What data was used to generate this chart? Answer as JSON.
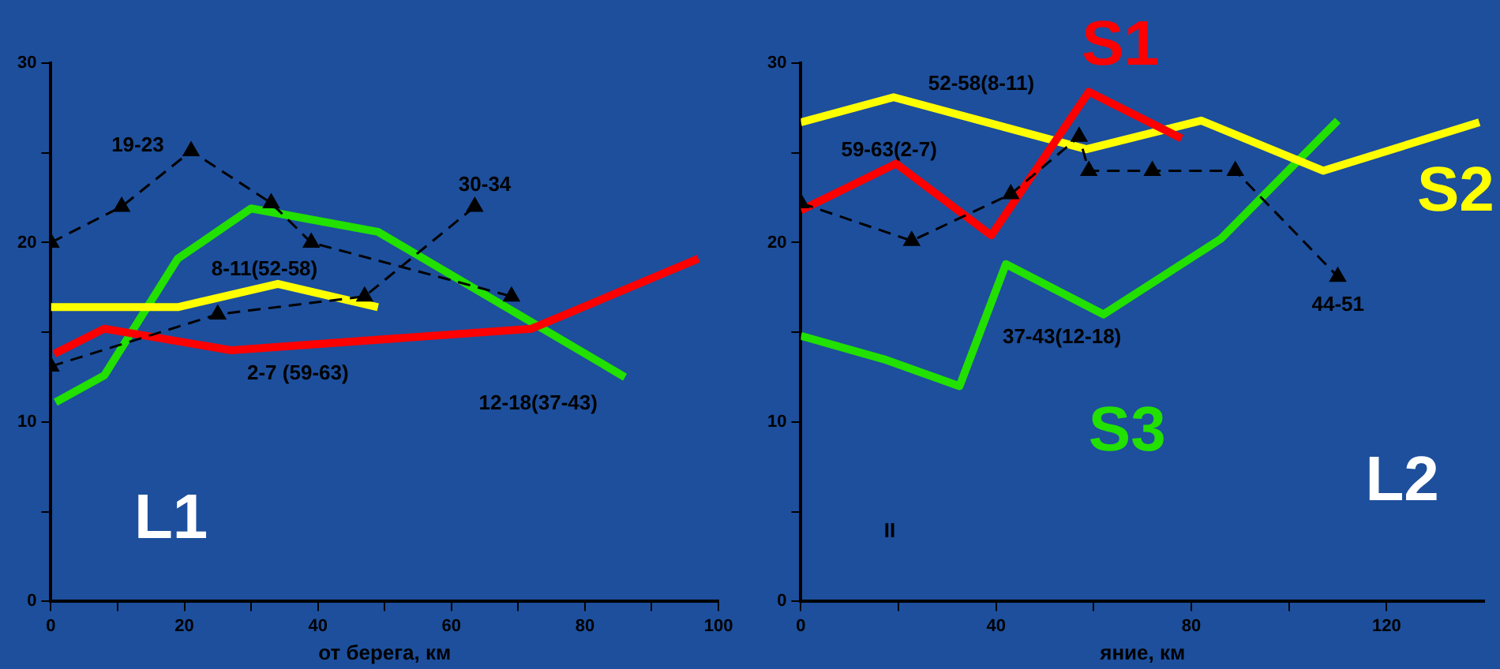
{
  "chart_data": [
    {
      "type": "line",
      "title": "L1",
      "xlabel": "от берега, км",
      "xlim": [
        0,
        100
      ],
      "ylim": [
        0,
        30
      ],
      "xticks": [
        0,
        {
          "value": 10,
          "label": null
        },
        20,
        {
          "value": 30,
          "label": null
        },
        40,
        {
          "value": 50,
          "label": null
        },
        60,
        {
          "value": 70,
          "label": null
        },
        80,
        {
          "value": 90,
          "label": null
        },
        100
      ],
      "yticks": [
        0,
        {
          "value": 5,
          "label": null
        },
        10,
        {
          "value": 15,
          "label": null
        },
        20,
        {
          "value": 25,
          "label": null
        },
        30
      ],
      "grid": false,
      "legend": false,
      "series": [
        {
          "color": "#000000",
          "marker": "triangle",
          "line_style": "dashed",
          "x": [
            0,
            10.6,
            21,
            33,
            39,
            69
          ],
          "values": [
            20,
            22,
            25.1,
            22.2,
            20,
            17
          ]
        },
        {
          "color": "#000000",
          "marker": "triangle",
          "line_style": "dashed",
          "x": [
            0,
            25,
            47,
            63.5
          ],
          "values": [
            13.1,
            16,
            17,
            22
          ]
        },
        {
          "color": "#ff0000",
          "marker": "none",
          "line_style": "solid",
          "x": [
            0.5,
            8,
            27,
            72,
            97
          ],
          "values": [
            13.8,
            15.2,
            14,
            15.2,
            19.1
          ]
        },
        {
          "color": "#ffff00",
          "marker": "none",
          "line_style": "solid",
          "x": [
            0,
            19,
            34,
            49
          ],
          "values": [
            16.4,
            16.4,
            17.7,
            16.4
          ]
        },
        {
          "color": "#22e000",
          "marker": "none",
          "line_style": "solid",
          "x": [
            0.7,
            8,
            19,
            30,
            49,
            86
          ],
          "values": [
            11.1,
            12.6,
            19.1,
            21.9,
            20.6,
            12.5
          ]
        }
      ],
      "annotations": [
        "19-23",
        "30-34",
        "8-11(52-58)",
        "2-7 (59-63)",
        "12-18(37-43)"
      ]
    },
    {
      "type": "line",
      "title": "L2",
      "xlabel": "яние, км",
      "xlim": [
        0,
        140
      ],
      "ylim": [
        0,
        30
      ],
      "xticks": [
        0,
        {
          "value": 20,
          "label": null
        },
        40,
        {
          "value": 60,
          "label": null
        },
        80,
        {
          "value": 100,
          "label": null
        },
        120
      ],
      "yticks": [
        0,
        {
          "value": 5,
          "label": null
        },
        10,
        {
          "value": 15,
          "label": null
        },
        20,
        {
          "value": 25,
          "label": null
        },
        30
      ],
      "grid": false,
      "legend": false,
      "series": [
        {
          "color": "#000000",
          "marker": "triangle",
          "line_style": "dashed",
          "x": [
            0,
            22.7,
            43,
            57,
            59,
            72,
            89,
            110
          ],
          "values": [
            22.2,
            20.1,
            22.7,
            25.9,
            24,
            24,
            24,
            18.1
          ]
        },
        {
          "name": "S1",
          "color": "#ff0000",
          "marker": "none",
          "line_style": "solid",
          "x": [
            0,
            19.5,
            39,
            59,
            78
          ],
          "values": [
            21.8,
            24.4,
            20.4,
            28.4,
            25.8
          ]
        },
        {
          "name": "S2",
          "color": "#ffff00",
          "marker": "none",
          "line_style": "solid",
          "x": [
            0,
            19,
            58.5,
            82,
            107,
            139
          ],
          "values": [
            26.7,
            28.1,
            25.2,
            26.8,
            24,
            26.7
          ]
        },
        {
          "name": "S3",
          "color": "#22e000",
          "marker": "none",
          "line_style": "solid",
          "x": [
            0,
            17,
            32.5,
            42,
            62,
            86,
            110
          ],
          "values": [
            14.8,
            13.5,
            12,
            18.8,
            16,
            20.2,
            26.8
          ]
        }
      ],
      "annotations": [
        "52-58(8-11)",
        "59-63(2-7)",
        "37-43(12-18)",
        "44-51",
        "II"
      ]
    }
  ]
}
